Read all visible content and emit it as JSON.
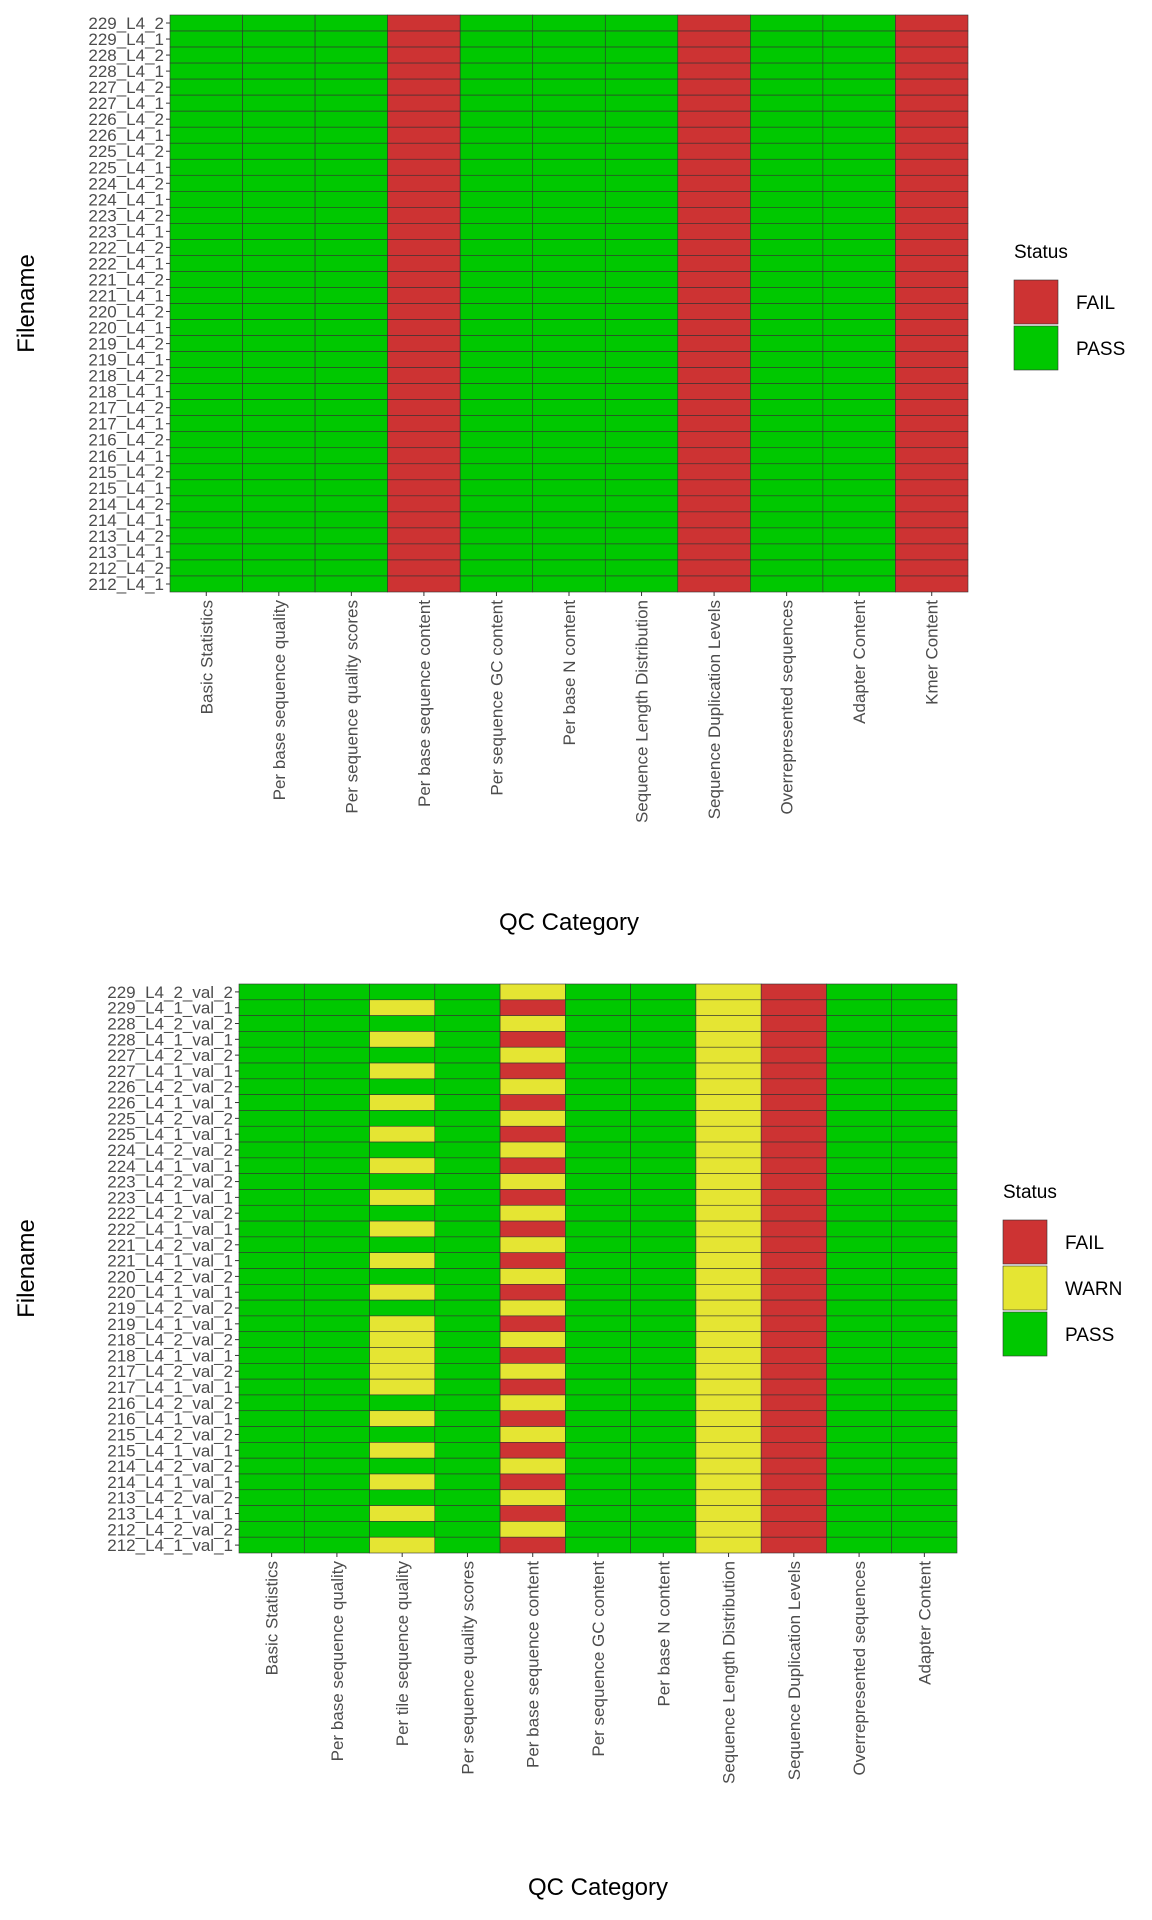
{
  "chart_data": [
    {
      "type": "heatmap",
      "x_label": "QC Category",
      "y_label": "Filename",
      "categories": [
        "Basic Statistics",
        "Per base sequence quality",
        "Per sequence quality scores",
        "Per base sequence content",
        "Per sequence GC content",
        "Per base N content",
        "Sequence Length Distribution",
        "Sequence Duplication Levels",
        "Overrepresented sequences",
        "Adapter Content",
        "Kmer Content"
      ],
      "rows": [
        "229_L4_2",
        "229_L4_1",
        "228_L4_2",
        "228_L4_1",
        "227_L4_2",
        "227_L4_1",
        "226_L4_2",
        "226_L4_1",
        "225_L4_2",
        "225_L4_1",
        "224_L4_2",
        "224_L4_1",
        "223_L4_2",
        "223_L4_1",
        "222_L4_2",
        "222_L4_1",
        "221_L4_2",
        "221_L4_1",
        "220_L4_2",
        "220_L4_1",
        "219_L4_2",
        "219_L4_1",
        "218_L4_2",
        "218_L4_1",
        "217_L4_2",
        "217_L4_1",
        "216_L4_2",
        "216_L4_1",
        "215_L4_2",
        "215_L4_1",
        "214_L4_2",
        "214_L4_1",
        "213_L4_2",
        "213_L4_1",
        "212_L4_2",
        "212_L4_1"
      ],
      "legend": {
        "title": "Status",
        "items": [
          {
            "name": "FAIL",
            "color": "#cd3333"
          },
          {
            "name": "PASS",
            "color": "#00c800"
          }
        ]
      },
      "values": [
        [
          "PASS",
          "PASS",
          "PASS",
          "FAIL",
          "PASS",
          "PASS",
          "PASS",
          "FAIL",
          "PASS",
          "PASS",
          "FAIL"
        ],
        [
          "PASS",
          "PASS",
          "PASS",
          "FAIL",
          "PASS",
          "PASS",
          "PASS",
          "FAIL",
          "PASS",
          "PASS",
          "FAIL"
        ],
        [
          "PASS",
          "PASS",
          "PASS",
          "FAIL",
          "PASS",
          "PASS",
          "PASS",
          "FAIL",
          "PASS",
          "PASS",
          "FAIL"
        ],
        [
          "PASS",
          "PASS",
          "PASS",
          "FAIL",
          "PASS",
          "PASS",
          "PASS",
          "FAIL",
          "PASS",
          "PASS",
          "FAIL"
        ],
        [
          "PASS",
          "PASS",
          "PASS",
          "FAIL",
          "PASS",
          "PASS",
          "PASS",
          "FAIL",
          "PASS",
          "PASS",
          "FAIL"
        ],
        [
          "PASS",
          "PASS",
          "PASS",
          "FAIL",
          "PASS",
          "PASS",
          "PASS",
          "FAIL",
          "PASS",
          "PASS",
          "FAIL"
        ],
        [
          "PASS",
          "PASS",
          "PASS",
          "FAIL",
          "PASS",
          "PASS",
          "PASS",
          "FAIL",
          "PASS",
          "PASS",
          "FAIL"
        ],
        [
          "PASS",
          "PASS",
          "PASS",
          "FAIL",
          "PASS",
          "PASS",
          "PASS",
          "FAIL",
          "PASS",
          "PASS",
          "FAIL"
        ],
        [
          "PASS",
          "PASS",
          "PASS",
          "FAIL",
          "PASS",
          "PASS",
          "PASS",
          "FAIL",
          "PASS",
          "PASS",
          "FAIL"
        ],
        [
          "PASS",
          "PASS",
          "PASS",
          "FAIL",
          "PASS",
          "PASS",
          "PASS",
          "FAIL",
          "PASS",
          "PASS",
          "FAIL"
        ],
        [
          "PASS",
          "PASS",
          "PASS",
          "FAIL",
          "PASS",
          "PASS",
          "PASS",
          "FAIL",
          "PASS",
          "PASS",
          "FAIL"
        ],
        [
          "PASS",
          "PASS",
          "PASS",
          "FAIL",
          "PASS",
          "PASS",
          "PASS",
          "FAIL",
          "PASS",
          "PASS",
          "FAIL"
        ],
        [
          "PASS",
          "PASS",
          "PASS",
          "FAIL",
          "PASS",
          "PASS",
          "PASS",
          "FAIL",
          "PASS",
          "PASS",
          "FAIL"
        ],
        [
          "PASS",
          "PASS",
          "PASS",
          "FAIL",
          "PASS",
          "PASS",
          "PASS",
          "FAIL",
          "PASS",
          "PASS",
          "FAIL"
        ],
        [
          "PASS",
          "PASS",
          "PASS",
          "FAIL",
          "PASS",
          "PASS",
          "PASS",
          "FAIL",
          "PASS",
          "PASS",
          "FAIL"
        ],
        [
          "PASS",
          "PASS",
          "PASS",
          "FAIL",
          "PASS",
          "PASS",
          "PASS",
          "FAIL",
          "PASS",
          "PASS",
          "FAIL"
        ],
        [
          "PASS",
          "PASS",
          "PASS",
          "FAIL",
          "PASS",
          "PASS",
          "PASS",
          "FAIL",
          "PASS",
          "PASS",
          "FAIL"
        ],
        [
          "PASS",
          "PASS",
          "PASS",
          "FAIL",
          "PASS",
          "PASS",
          "PASS",
          "FAIL",
          "PASS",
          "PASS",
          "FAIL"
        ],
        [
          "PASS",
          "PASS",
          "PASS",
          "FAIL",
          "PASS",
          "PASS",
          "PASS",
          "FAIL",
          "PASS",
          "PASS",
          "FAIL"
        ],
        [
          "PASS",
          "PASS",
          "PASS",
          "FAIL",
          "PASS",
          "PASS",
          "PASS",
          "FAIL",
          "PASS",
          "PASS",
          "FAIL"
        ],
        [
          "PASS",
          "PASS",
          "PASS",
          "FAIL",
          "PASS",
          "PASS",
          "PASS",
          "FAIL",
          "PASS",
          "PASS",
          "FAIL"
        ],
        [
          "PASS",
          "PASS",
          "PASS",
          "FAIL",
          "PASS",
          "PASS",
          "PASS",
          "FAIL",
          "PASS",
          "PASS",
          "FAIL"
        ],
        [
          "PASS",
          "PASS",
          "PASS",
          "FAIL",
          "PASS",
          "PASS",
          "PASS",
          "FAIL",
          "PASS",
          "PASS",
          "FAIL"
        ],
        [
          "PASS",
          "PASS",
          "PASS",
          "FAIL",
          "PASS",
          "PASS",
          "PASS",
          "FAIL",
          "PASS",
          "PASS",
          "FAIL"
        ],
        [
          "PASS",
          "PASS",
          "PASS",
          "FAIL",
          "PASS",
          "PASS",
          "PASS",
          "FAIL",
          "PASS",
          "PASS",
          "FAIL"
        ],
        [
          "PASS",
          "PASS",
          "PASS",
          "FAIL",
          "PASS",
          "PASS",
          "PASS",
          "FAIL",
          "PASS",
          "PASS",
          "FAIL"
        ],
        [
          "PASS",
          "PASS",
          "PASS",
          "FAIL",
          "PASS",
          "PASS",
          "PASS",
          "FAIL",
          "PASS",
          "PASS",
          "FAIL"
        ],
        [
          "PASS",
          "PASS",
          "PASS",
          "FAIL",
          "PASS",
          "PASS",
          "PASS",
          "FAIL",
          "PASS",
          "PASS",
          "FAIL"
        ],
        [
          "PASS",
          "PASS",
          "PASS",
          "FAIL",
          "PASS",
          "PASS",
          "PASS",
          "FAIL",
          "PASS",
          "PASS",
          "FAIL"
        ],
        [
          "PASS",
          "PASS",
          "PASS",
          "FAIL",
          "PASS",
          "PASS",
          "PASS",
          "FAIL",
          "PASS",
          "PASS",
          "FAIL"
        ],
        [
          "PASS",
          "PASS",
          "PASS",
          "FAIL",
          "PASS",
          "PASS",
          "PASS",
          "FAIL",
          "PASS",
          "PASS",
          "FAIL"
        ],
        [
          "PASS",
          "PASS",
          "PASS",
          "FAIL",
          "PASS",
          "PASS",
          "PASS",
          "FAIL",
          "PASS",
          "PASS",
          "FAIL"
        ],
        [
          "PASS",
          "PASS",
          "PASS",
          "FAIL",
          "PASS",
          "PASS",
          "PASS",
          "FAIL",
          "PASS",
          "PASS",
          "FAIL"
        ],
        [
          "PASS",
          "PASS",
          "PASS",
          "FAIL",
          "PASS",
          "PASS",
          "PASS",
          "FAIL",
          "PASS",
          "PASS",
          "FAIL"
        ],
        [
          "PASS",
          "PASS",
          "PASS",
          "FAIL",
          "PASS",
          "PASS",
          "PASS",
          "FAIL",
          "PASS",
          "PASS",
          "FAIL"
        ],
        [
          "PASS",
          "PASS",
          "PASS",
          "FAIL",
          "PASS",
          "PASS",
          "PASS",
          "FAIL",
          "PASS",
          "PASS",
          "FAIL"
        ]
      ]
    },
    {
      "type": "heatmap",
      "x_label": "QC Category",
      "y_label": "Filename",
      "categories": [
        "Basic Statistics",
        "Per base sequence quality",
        "Per tile sequence quality",
        "Per sequence quality scores",
        "Per base sequence content",
        "Per sequence GC content",
        "Per base N content",
        "Sequence Length Distribution",
        "Sequence Duplication Levels",
        "Overrepresented sequences",
        "Adapter Content"
      ],
      "rows": [
        "229_L4_2_val_2",
        "229_L4_1_val_1",
        "228_L4_2_val_2",
        "228_L4_1_val_1",
        "227_L4_2_val_2",
        "227_L4_1_val_1",
        "226_L4_2_val_2",
        "226_L4_1_val_1",
        "225_L4_2_val_2",
        "225_L4_1_val_1",
        "224_L4_2_val_2",
        "224_L4_1_val_1",
        "223_L4_2_val_2",
        "223_L4_1_val_1",
        "222_L4_2_val_2",
        "222_L4_1_val_1",
        "221_L4_2_val_2",
        "221_L4_1_val_1",
        "220_L4_2_val_2",
        "220_L4_1_val_1",
        "219_L4_2_val_2",
        "219_L4_1_val_1",
        "218_L4_2_val_2",
        "218_L4_1_val_1",
        "217_L4_2_val_2",
        "217_L4_1_val_1",
        "216_L4_2_val_2",
        "216_L4_1_val_1",
        "215_L4_2_val_2",
        "215_L4_1_val_1",
        "214_L4_2_val_2",
        "214_L4_1_val_1",
        "213_L4_2_val_2",
        "213_L4_1_val_1",
        "212_L4_2_val_2",
        "212_L4_1_val_1"
      ],
      "legend": {
        "title": "Status",
        "items": [
          {
            "name": "FAIL",
            "color": "#cd3333"
          },
          {
            "name": "WARN",
            "color": "#e5e533"
          },
          {
            "name": "PASS",
            "color": "#00c800"
          }
        ]
      },
      "values": [
        [
          "PASS",
          "PASS",
          "PASS",
          "PASS",
          "WARN",
          "PASS",
          "PASS",
          "WARN",
          "FAIL",
          "PASS",
          "PASS"
        ],
        [
          "PASS",
          "PASS",
          "WARN",
          "PASS",
          "FAIL",
          "PASS",
          "PASS",
          "WARN",
          "FAIL",
          "PASS",
          "PASS"
        ],
        [
          "PASS",
          "PASS",
          "PASS",
          "PASS",
          "WARN",
          "PASS",
          "PASS",
          "WARN",
          "FAIL",
          "PASS",
          "PASS"
        ],
        [
          "PASS",
          "PASS",
          "WARN",
          "PASS",
          "FAIL",
          "PASS",
          "PASS",
          "WARN",
          "FAIL",
          "PASS",
          "PASS"
        ],
        [
          "PASS",
          "PASS",
          "PASS",
          "PASS",
          "WARN",
          "PASS",
          "PASS",
          "WARN",
          "FAIL",
          "PASS",
          "PASS"
        ],
        [
          "PASS",
          "PASS",
          "WARN",
          "PASS",
          "FAIL",
          "PASS",
          "PASS",
          "WARN",
          "FAIL",
          "PASS",
          "PASS"
        ],
        [
          "PASS",
          "PASS",
          "PASS",
          "PASS",
          "WARN",
          "PASS",
          "PASS",
          "WARN",
          "FAIL",
          "PASS",
          "PASS"
        ],
        [
          "PASS",
          "PASS",
          "WARN",
          "PASS",
          "FAIL",
          "PASS",
          "PASS",
          "WARN",
          "FAIL",
          "PASS",
          "PASS"
        ],
        [
          "PASS",
          "PASS",
          "PASS",
          "PASS",
          "WARN",
          "PASS",
          "PASS",
          "WARN",
          "FAIL",
          "PASS",
          "PASS"
        ],
        [
          "PASS",
          "PASS",
          "WARN",
          "PASS",
          "FAIL",
          "PASS",
          "PASS",
          "WARN",
          "FAIL",
          "PASS",
          "PASS"
        ],
        [
          "PASS",
          "PASS",
          "PASS",
          "PASS",
          "WARN",
          "PASS",
          "PASS",
          "WARN",
          "FAIL",
          "PASS",
          "PASS"
        ],
        [
          "PASS",
          "PASS",
          "WARN",
          "PASS",
          "FAIL",
          "PASS",
          "PASS",
          "WARN",
          "FAIL",
          "PASS",
          "PASS"
        ],
        [
          "PASS",
          "PASS",
          "PASS",
          "PASS",
          "WARN",
          "PASS",
          "PASS",
          "WARN",
          "FAIL",
          "PASS",
          "PASS"
        ],
        [
          "PASS",
          "PASS",
          "WARN",
          "PASS",
          "FAIL",
          "PASS",
          "PASS",
          "WARN",
          "FAIL",
          "PASS",
          "PASS"
        ],
        [
          "PASS",
          "PASS",
          "PASS",
          "PASS",
          "WARN",
          "PASS",
          "PASS",
          "WARN",
          "FAIL",
          "PASS",
          "PASS"
        ],
        [
          "PASS",
          "PASS",
          "WARN",
          "PASS",
          "FAIL",
          "PASS",
          "PASS",
          "WARN",
          "FAIL",
          "PASS",
          "PASS"
        ],
        [
          "PASS",
          "PASS",
          "PASS",
          "PASS",
          "WARN",
          "PASS",
          "PASS",
          "WARN",
          "FAIL",
          "PASS",
          "PASS"
        ],
        [
          "PASS",
          "PASS",
          "WARN",
          "PASS",
          "FAIL",
          "PASS",
          "PASS",
          "WARN",
          "FAIL",
          "PASS",
          "PASS"
        ],
        [
          "PASS",
          "PASS",
          "PASS",
          "PASS",
          "WARN",
          "PASS",
          "PASS",
          "WARN",
          "FAIL",
          "PASS",
          "PASS"
        ],
        [
          "PASS",
          "PASS",
          "WARN",
          "PASS",
          "FAIL",
          "PASS",
          "PASS",
          "WARN",
          "FAIL",
          "PASS",
          "PASS"
        ],
        [
          "PASS",
          "PASS",
          "PASS",
          "PASS",
          "WARN",
          "PASS",
          "PASS",
          "WARN",
          "FAIL",
          "PASS",
          "PASS"
        ],
        [
          "PASS",
          "PASS",
          "WARN",
          "PASS",
          "FAIL",
          "PASS",
          "PASS",
          "WARN",
          "FAIL",
          "PASS",
          "PASS"
        ],
        [
          "PASS",
          "PASS",
          "WARN",
          "PASS",
          "WARN",
          "PASS",
          "PASS",
          "WARN",
          "FAIL",
          "PASS",
          "PASS"
        ],
        [
          "PASS",
          "PASS",
          "WARN",
          "PASS",
          "FAIL",
          "PASS",
          "PASS",
          "WARN",
          "FAIL",
          "PASS",
          "PASS"
        ],
        [
          "PASS",
          "PASS",
          "WARN",
          "PASS",
          "WARN",
          "PASS",
          "PASS",
          "WARN",
          "FAIL",
          "PASS",
          "PASS"
        ],
        [
          "PASS",
          "PASS",
          "WARN",
          "PASS",
          "FAIL",
          "PASS",
          "PASS",
          "WARN",
          "FAIL",
          "PASS",
          "PASS"
        ],
        [
          "PASS",
          "PASS",
          "PASS",
          "PASS",
          "WARN",
          "PASS",
          "PASS",
          "WARN",
          "FAIL",
          "PASS",
          "PASS"
        ],
        [
          "PASS",
          "PASS",
          "WARN",
          "PASS",
          "FAIL",
          "PASS",
          "PASS",
          "WARN",
          "FAIL",
          "PASS",
          "PASS"
        ],
        [
          "PASS",
          "PASS",
          "PASS",
          "PASS",
          "WARN",
          "PASS",
          "PASS",
          "WARN",
          "FAIL",
          "PASS",
          "PASS"
        ],
        [
          "PASS",
          "PASS",
          "WARN",
          "PASS",
          "FAIL",
          "PASS",
          "PASS",
          "WARN",
          "FAIL",
          "PASS",
          "PASS"
        ],
        [
          "PASS",
          "PASS",
          "PASS",
          "PASS",
          "WARN",
          "PASS",
          "PASS",
          "WARN",
          "FAIL",
          "PASS",
          "PASS"
        ],
        [
          "PASS",
          "PASS",
          "WARN",
          "PASS",
          "FAIL",
          "PASS",
          "PASS",
          "WARN",
          "FAIL",
          "PASS",
          "PASS"
        ],
        [
          "PASS",
          "PASS",
          "PASS",
          "PASS",
          "WARN",
          "PASS",
          "PASS",
          "WARN",
          "FAIL",
          "PASS",
          "PASS"
        ],
        [
          "PASS",
          "PASS",
          "WARN",
          "PASS",
          "FAIL",
          "PASS",
          "PASS",
          "WARN",
          "FAIL",
          "PASS",
          "PASS"
        ],
        [
          "PASS",
          "PASS",
          "PASS",
          "PASS",
          "WARN",
          "PASS",
          "PASS",
          "WARN",
          "FAIL",
          "PASS",
          "PASS"
        ],
        [
          "PASS",
          "PASS",
          "WARN",
          "PASS",
          "FAIL",
          "PASS",
          "PASS",
          "WARN",
          "FAIL",
          "PASS",
          "PASS"
        ]
      ]
    }
  ]
}
